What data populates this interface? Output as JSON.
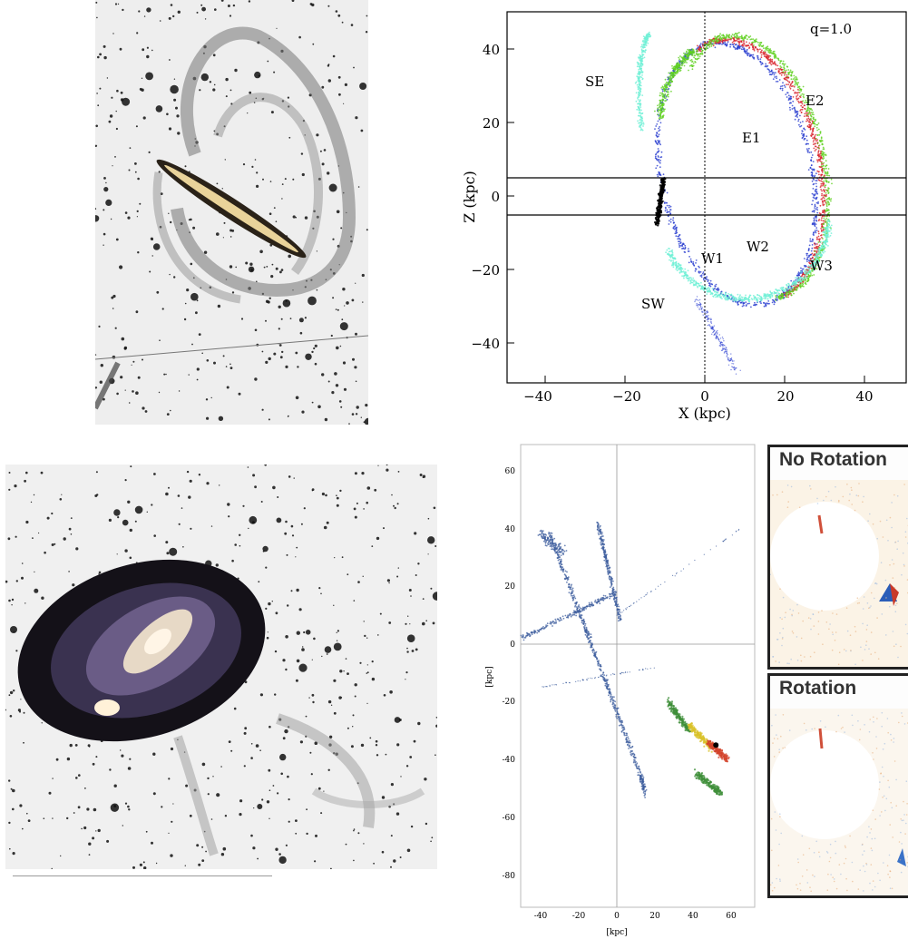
{
  "images": {
    "edge_on": {
      "description_icon": "edge-on-galaxy-with-loops"
    },
    "barred_spiral": {
      "description_icon": "barred-spiral-galaxy-with-streams"
    }
  },
  "top_plot": {
    "annotation": "q=1.0",
    "xlabel": "X (kpc)",
    "ylabel": "Z (kpc)",
    "xticks": [
      "−40",
      "−20",
      "0",
      "20",
      "40"
    ],
    "yticks": [
      "40",
      "20",
      "0",
      "−20",
      "−40"
    ],
    "labels": {
      "se": "SE",
      "e2": "E2",
      "e1": "E1",
      "w2": "W2",
      "w1": "W1",
      "w3": "W3",
      "sw": "SW"
    },
    "colors": {
      "blue": "#2b3fd0",
      "red": "#d8222a",
      "green": "#5fd11f",
      "cyan": "#6ff0d6",
      "black": "#000000"
    }
  },
  "bottom_plot": {
    "xlabel": "[kpc]",
    "ylabel": "[kpc]",
    "xticks": [
      "-40",
      "-20",
      "0",
      "20",
      "40",
      "60"
    ],
    "yticks": [
      "60",
      "40",
      "20",
      "0",
      "-20",
      "-40",
      "-60",
      "-80"
    ],
    "colors": {
      "stream": "#3d5d9e",
      "green": "#3f8f3a",
      "yellow": "#d9c22a",
      "red": "#d3432b"
    }
  },
  "insets": {
    "no_rotation": {
      "title": "No Rotation"
    },
    "rotation": {
      "title": "Rotation"
    }
  }
}
